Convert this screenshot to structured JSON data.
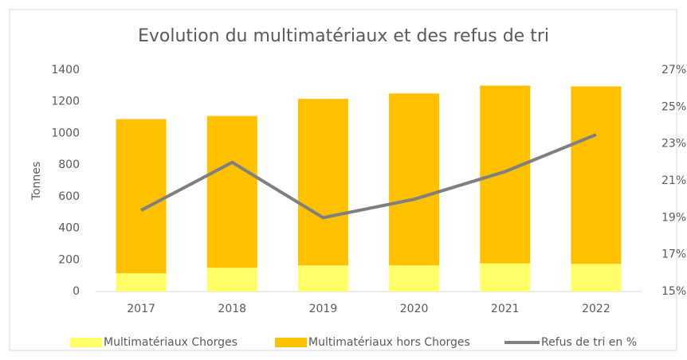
{
  "chart_data": {
    "type": "bar-line",
    "title": "Evolution du multimatériaux et des refus de tri",
    "y_label": "Tonnes",
    "categories": [
      "2017",
      "2018",
      "2019",
      "2020",
      "2021",
      "2022"
    ],
    "series": [
      {
        "name": "Multimatériaux Chorges",
        "color": "#ffff66",
        "values": [
          115,
          150,
          165,
          165,
          178,
          175
        ]
      },
      {
        "name": "Multimatériaux hors Chorges",
        "color": "#ffc000",
        "values": [
          975,
          960,
          1053,
          1087,
          1124,
          1122
        ]
      },
      {
        "name": "Refus de tri en %",
        "color": "#7f7f7f",
        "axis": "y2",
        "values": [
          19.4,
          22.0,
          19.0,
          20.0,
          21.5,
          23.5
        ]
      }
    ],
    "ylim": [
      0,
      1400
    ],
    "yticks": [
      0,
      200,
      400,
      600,
      800,
      1000,
      1200,
      1400
    ],
    "y2lim": [
      15,
      27
    ],
    "y2ticks": [
      {
        "value": 15,
        "label": "15%"
      },
      {
        "value": 17,
        "label": "17%"
      },
      {
        "value": 19,
        "label": "19%"
      },
      {
        "value": 21,
        "label": "21%"
      },
      {
        "value": 23,
        "label": "23%"
      },
      {
        "value": 25,
        "label": "25%"
      },
      {
        "value": 27,
        "label": "27%"
      }
    ],
    "grid": false,
    "legend": "bottom"
  }
}
